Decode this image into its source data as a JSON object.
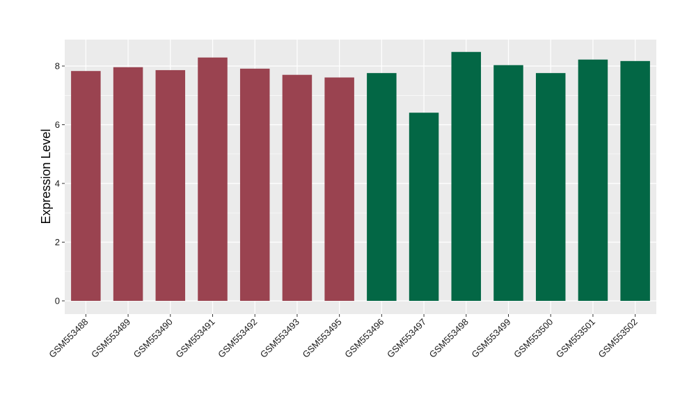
{
  "chart_data": {
    "type": "bar",
    "ylabel": "Expression Level",
    "xlabel": "",
    "ylim": [
      -0.45,
      8.9
    ],
    "yticks": [
      0,
      2,
      4,
      6,
      8
    ],
    "grid": true,
    "legend": "none",
    "categories": [
      "GSM553488",
      "GSM553489",
      "GSM553490",
      "GSM553491",
      "GSM553492",
      "GSM553493",
      "GSM553495",
      "GSM553496",
      "GSM553497",
      "GSM553498",
      "GSM553499",
      "GSM553500",
      "GSM553501",
      "GSM553502"
    ],
    "values": [
      7.83,
      7.96,
      7.86,
      8.29,
      7.91,
      7.7,
      7.61,
      7.76,
      6.41,
      8.48,
      8.03,
      7.76,
      8.22,
      8.17
    ],
    "groups": [
      0,
      0,
      0,
      0,
      0,
      0,
      0,
      1,
      1,
      1,
      1,
      1,
      1,
      1
    ],
    "group_colors": [
      "#9a4350",
      "#036745"
    ],
    "panel_background": "#ebebeb",
    "grid_color": "#ffffff"
  }
}
